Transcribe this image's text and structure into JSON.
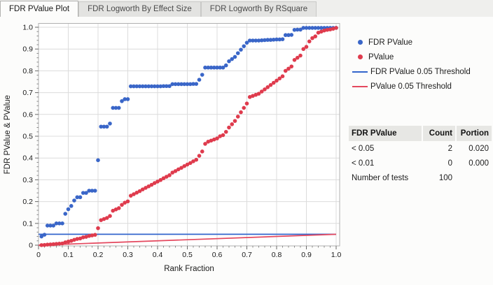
{
  "tabs": [
    {
      "label": "FDR PValue Plot",
      "active": true
    },
    {
      "label": "FDR Logworth By Effect Size",
      "active": false
    },
    {
      "label": "FDR Logworth By RSquare",
      "active": false
    }
  ],
  "legend": {
    "items": [
      {
        "label": "FDR PValue",
        "marker": "dot",
        "color": "#3a66c8"
      },
      {
        "label": "PValue",
        "marker": "dot",
        "color": "#df3b4d"
      },
      {
        "label": "FDR PValue 0.05 Threshold",
        "marker": "line",
        "color": "#3365cc"
      },
      {
        "label": "PValue 0.05 Threshold",
        "marker": "line",
        "color": "#e4485e"
      }
    ]
  },
  "table": {
    "header": [
      "FDR PValue",
      "Count",
      "Portion"
    ],
    "rows": [
      [
        "< 0.05",
        "2",
        "0.020"
      ],
      [
        "< 0.01",
        "0",
        "0.000"
      ],
      [
        "Number of tests",
        "100",
        ""
      ]
    ]
  },
  "chart_data": {
    "type": "scatter",
    "title": "",
    "xlabel": "Rank Fraction",
    "ylabel": "FDR PValue & PValue",
    "xlim": [
      0,
      1
    ],
    "ylim": [
      0,
      1
    ],
    "grid": true,
    "legend_position": "right",
    "tick_labels": [
      "0",
      "0.1",
      "0.2",
      "0.3",
      "0.4",
      "0.5",
      "0.6",
      "0.7",
      "0.8",
      "0.9",
      "1.0"
    ],
    "tick_values": [
      0,
      0.1,
      0.2,
      0.3,
      0.4,
      0.5,
      0.6,
      0.7,
      0.8,
      0.9,
      1.0
    ],
    "minor_tick_step": 0.02,
    "colors": {
      "grid": "#dcdcdc",
      "frame": "#b0b0b0",
      "tick_text": "#1a1a1a"
    },
    "x": [
      0.01,
      0.02,
      0.03,
      0.04,
      0.05,
      0.06,
      0.07,
      0.08,
      0.09,
      0.1,
      0.11,
      0.12,
      0.13,
      0.14,
      0.15,
      0.16,
      0.17,
      0.18,
      0.19,
      0.2,
      0.21,
      0.22,
      0.23,
      0.24,
      0.25,
      0.26,
      0.27,
      0.28,
      0.29,
      0.3,
      0.31,
      0.32,
      0.33,
      0.34,
      0.35,
      0.36,
      0.37,
      0.38,
      0.39,
      0.4,
      0.41,
      0.42,
      0.43,
      0.44,
      0.45,
      0.46,
      0.47,
      0.48,
      0.49,
      0.5,
      0.51,
      0.52,
      0.53,
      0.54,
      0.55,
      0.56,
      0.57,
      0.58,
      0.59,
      0.6,
      0.61,
      0.62,
      0.63,
      0.64,
      0.65,
      0.66,
      0.67,
      0.68,
      0.69,
      0.7,
      0.71,
      0.72,
      0.73,
      0.74,
      0.75,
      0.76,
      0.77,
      0.78,
      0.79,
      0.8,
      0.81,
      0.82,
      0.83,
      0.84,
      0.85,
      0.86,
      0.87,
      0.88,
      0.89,
      0.9,
      0.91,
      0.92,
      0.93,
      0.94,
      0.95,
      0.96,
      0.97,
      0.98,
      0.99,
      1.0
    ],
    "series": [
      {
        "name": "FDR PValue",
        "color": "#3a66c8",
        "y": [
          0.04,
          0.048,
          0.09,
          0.09,
          0.09,
          0.1,
          0.1,
          0.1,
          0.144,
          0.165,
          0.18,
          0.205,
          0.22,
          0.22,
          0.24,
          0.24,
          0.25,
          0.25,
          0.25,
          0.39,
          0.544,
          0.544,
          0.544,
          0.558,
          0.63,
          0.63,
          0.63,
          0.661,
          0.67,
          0.67,
          0.729,
          0.729,
          0.729,
          0.729,
          0.729,
          0.729,
          0.729,
          0.729,
          0.729,
          0.729,
          0.729,
          0.73,
          0.73,
          0.73,
          0.739,
          0.739,
          0.739,
          0.739,
          0.739,
          0.739,
          0.739,
          0.74,
          0.74,
          0.759,
          0.782,
          0.815,
          0.815,
          0.815,
          0.815,
          0.815,
          0.815,
          0.815,
          0.825,
          0.844,
          0.854,
          0.864,
          0.881,
          0.897,
          0.913,
          0.929,
          0.939,
          0.939,
          0.939,
          0.939,
          0.94,
          0.941,
          0.942,
          0.942,
          0.943,
          0.944,
          0.944,
          0.945,
          0.964,
          0.964,
          0.965,
          0.988,
          0.989,
          0.989,
          0.997,
          0.997,
          0.997,
          0.997,
          0.997,
          0.997,
          0.997,
          0.997,
          0.997,
          0.997,
          0.997,
          0.997
        ]
      },
      {
        "name": "PValue",
        "color": "#df3b4d",
        "y": [
          0.0004,
          0.001,
          0.0027,
          0.0036,
          0.0045,
          0.006,
          0.007,
          0.008,
          0.013,
          0.0165,
          0.0198,
          0.0246,
          0.0286,
          0.0308,
          0.036,
          0.0384,
          0.0425,
          0.045,
          0.0475,
          0.078,
          0.115,
          0.12,
          0.125,
          0.134,
          0.158,
          0.164,
          0.17,
          0.185,
          0.195,
          0.201,
          0.227,
          0.234,
          0.241,
          0.248,
          0.256,
          0.263,
          0.27,
          0.277,
          0.285,
          0.292,
          0.299,
          0.307,
          0.314,
          0.321,
          0.333,
          0.34,
          0.348,
          0.355,
          0.363,
          0.37,
          0.377,
          0.385,
          0.392,
          0.41,
          0.43,
          0.465,
          0.475,
          0.48,
          0.485,
          0.49,
          0.5,
          0.505,
          0.52,
          0.54,
          0.555,
          0.57,
          0.59,
          0.61,
          0.63,
          0.65,
          0.68,
          0.685,
          0.69,
          0.695,
          0.705,
          0.715,
          0.725,
          0.735,
          0.745,
          0.755,
          0.765,
          0.775,
          0.8,
          0.81,
          0.82,
          0.85,
          0.86,
          0.87,
          0.9,
          0.91,
          0.935,
          0.95,
          0.958,
          0.975,
          0.98,
          0.985,
          0.988,
          0.99,
          0.993,
          0.997
        ]
      }
    ],
    "lines": [
      {
        "name": "FDR PValue 0.05 Threshold",
        "color": "#3365cc",
        "from": [
          0,
          0.05
        ],
        "to": [
          1,
          0.05
        ]
      },
      {
        "name": "PValue 0.05 Threshold",
        "color": "#e4485e",
        "from": [
          0,
          0.0
        ],
        "to": [
          1,
          0.05
        ]
      }
    ]
  }
}
